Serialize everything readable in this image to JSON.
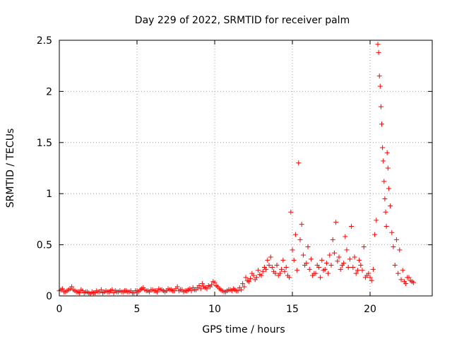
{
  "chart_data": {
    "type": "scatter",
    "title": "Day 229 of 2022, SRMTID for receiver palm",
    "xlabel": "GPS time / hours",
    "ylabel": "SRMTID / TECUs",
    "xlim": [
      0,
      24
    ],
    "ylim": [
      0,
      2.5
    ],
    "xticks": [
      0,
      5,
      10,
      15,
      20
    ],
    "xtick_labels": [
      "0",
      "5",
      "10",
      "15",
      "20"
    ],
    "yticks": [
      0,
      0.5,
      1,
      1.5,
      2,
      2.5
    ],
    "ytick_labels": [
      "0",
      "0.5",
      "1",
      "1.5",
      "2",
      "2.5"
    ],
    "grid": true,
    "marker": "+",
    "color": "#ff0000",
    "series": [
      {
        "name": "SRMTID",
        "x": [
          0.0,
          0.2,
          0.4,
          0.6,
          0.8,
          1.0,
          1.2,
          1.4,
          1.6,
          1.8,
          2.0,
          2.2,
          2.4,
          2.6,
          2.8,
          3.0,
          3.2,
          3.4,
          3.6,
          3.8,
          4.0,
          4.2,
          4.4,
          4.6,
          4.8,
          5.0,
          5.2,
          5.4,
          5.6,
          5.8,
          6.0,
          6.2,
          6.4,
          6.6,
          6.8,
          7.0,
          7.2,
          7.4,
          7.6,
          7.8,
          8.0,
          8.2,
          8.4,
          8.6,
          8.8,
          9.0,
          9.2,
          9.4,
          9.6,
          9.8,
          10.0,
          10.2,
          10.4,
          10.6,
          10.8,
          11.0,
          11.2,
          11.4,
          11.6,
          11.8,
          12.0,
          12.2,
          12.4,
          12.6,
          12.8,
          13.0,
          13.2,
          13.4,
          13.6,
          13.8,
          14.0,
          14.2,
          14.4,
          14.6,
          14.8,
          14.9,
          15.0,
          15.1,
          15.2,
          15.3,
          15.4,
          15.5,
          15.6,
          15.8,
          16.0,
          16.2,
          16.4,
          16.6,
          16.8,
          17.0,
          17.2,
          17.4,
          17.6,
          17.8,
          18.0,
          18.2,
          18.4,
          18.6,
          18.8,
          19.0,
          19.2,
          19.4,
          19.6,
          19.8,
          20.0,
          20.2,
          20.3,
          20.4,
          20.5,
          20.55,
          20.6,
          20.65,
          20.7,
          20.75,
          20.8,
          20.85,
          20.9,
          20.95,
          21.0,
          21.05,
          21.1,
          21.15,
          21.2,
          21.3,
          21.4,
          21.5,
          21.6,
          21.8,
          22.0,
          22.2,
          22.4,
          22.6,
          22.8,
          0.1,
          0.3,
          0.5,
          0.7,
          0.9,
          1.1,
          1.3,
          1.5,
          1.7,
          1.9,
          2.1,
          2.3,
          2.5,
          2.7,
          2.9,
          3.1,
          3.3,
          3.5,
          3.7,
          3.9,
          4.1,
          4.3,
          4.5,
          4.7,
          4.9,
          5.1,
          5.3,
          5.5,
          5.7,
          5.9,
          6.1,
          6.3,
          6.5,
          6.7,
          6.9,
          7.1,
          7.3,
          7.5,
          7.7,
          7.9,
          8.1,
          8.3,
          8.5,
          8.7,
          8.9,
          9.1,
          9.3,
          9.5,
          9.7,
          9.9,
          10.1,
          10.3,
          10.5,
          10.7,
          10.9,
          11.1,
          11.3,
          11.5,
          11.7,
          11.9,
          12.1,
          12.3,
          12.5,
          12.7,
          12.9,
          13.1,
          13.3,
          13.5,
          13.7,
          13.9,
          14.1,
          14.3,
          14.5,
          14.7,
          15.7,
          15.9,
          16.1,
          16.3,
          16.5,
          16.7,
          16.9,
          17.1,
          17.3,
          17.5,
          17.7,
          17.9,
          18.1,
          18.3,
          18.5,
          18.7,
          18.9,
          19.1,
          19.3,
          19.5,
          19.7,
          19.9,
          20.1,
          21.7,
          21.9,
          22.1,
          22.3,
          22.5,
          22.7
        ],
        "y": [
          0.05,
          0.07,
          0.04,
          0.06,
          0.09,
          0.05,
          0.04,
          0.06,
          0.03,
          0.04,
          0.02,
          0.03,
          0.05,
          0.04,
          0.03,
          0.05,
          0.04,
          0.06,
          0.05,
          0.04,
          0.04,
          0.05,
          0.04,
          0.05,
          0.03,
          0.05,
          0.06,
          0.08,
          0.05,
          0.04,
          0.06,
          0.05,
          0.07,
          0.06,
          0.04,
          0.07,
          0.06,
          0.05,
          0.09,
          0.06,
          0.04,
          0.05,
          0.07,
          0.08,
          0.06,
          0.1,
          0.12,
          0.08,
          0.1,
          0.11,
          0.13,
          0.09,
          0.06,
          0.04,
          0.05,
          0.06,
          0.07,
          0.05,
          0.08,
          0.12,
          0.18,
          0.14,
          0.22,
          0.16,
          0.25,
          0.2,
          0.28,
          0.35,
          0.38,
          0.24,
          0.3,
          0.22,
          0.35,
          0.28,
          0.18,
          0.82,
          0.45,
          0.35,
          0.6,
          0.25,
          1.3,
          0.55,
          0.7,
          0.3,
          0.48,
          0.36,
          0.22,
          0.3,
          0.18,
          0.25,
          0.32,
          0.4,
          0.55,
          0.72,
          0.38,
          0.3,
          0.58,
          0.28,
          0.68,
          0.38,
          0.25,
          0.3,
          0.48,
          0.2,
          0.18,
          0.26,
          0.6,
          0.74,
          2.46,
          2.38,
          2.15,
          2.05,
          1.85,
          1.68,
          1.45,
          1.32,
          1.12,
          0.95,
          0.82,
          0.68,
          1.4,
          1.25,
          1.05,
          0.88,
          0.62,
          0.48,
          0.3,
          0.22,
          0.16,
          0.14,
          0.18,
          0.15,
          0.13,
          0.06,
          0.04,
          0.05,
          0.07,
          0.06,
          0.04,
          0.03,
          0.05,
          0.04,
          0.03,
          0.04,
          0.03,
          0.04,
          0.06,
          0.04,
          0.04,
          0.05,
          0.03,
          0.04,
          0.05,
          0.04,
          0.05,
          0.04,
          0.03,
          0.05,
          0.04,
          0.07,
          0.06,
          0.05,
          0.06,
          0.05,
          0.04,
          0.06,
          0.05,
          0.05,
          0.06,
          0.05,
          0.07,
          0.05,
          0.06,
          0.05,
          0.06,
          0.05,
          0.06,
          0.08,
          0.07,
          0.09,
          0.07,
          0.09,
          0.14,
          0.1,
          0.07,
          0.05,
          0.04,
          0.06,
          0.05,
          0.06,
          0.05,
          0.06,
          0.09,
          0.15,
          0.17,
          0.2,
          0.18,
          0.21,
          0.24,
          0.26,
          0.3,
          0.28,
          0.22,
          0.2,
          0.26,
          0.24,
          0.2,
          0.4,
          0.32,
          0.26,
          0.2,
          0.22,
          0.28,
          0.35,
          0.26,
          0.22,
          0.3,
          0.42,
          0.34,
          0.26,
          0.32,
          0.45,
          0.36,
          0.28,
          0.22,
          0.35,
          0.25,
          0.18,
          0.22,
          0.15,
          0.55,
          0.45,
          0.25,
          0.12,
          0.18,
          0.14
        ]
      }
    ]
  }
}
